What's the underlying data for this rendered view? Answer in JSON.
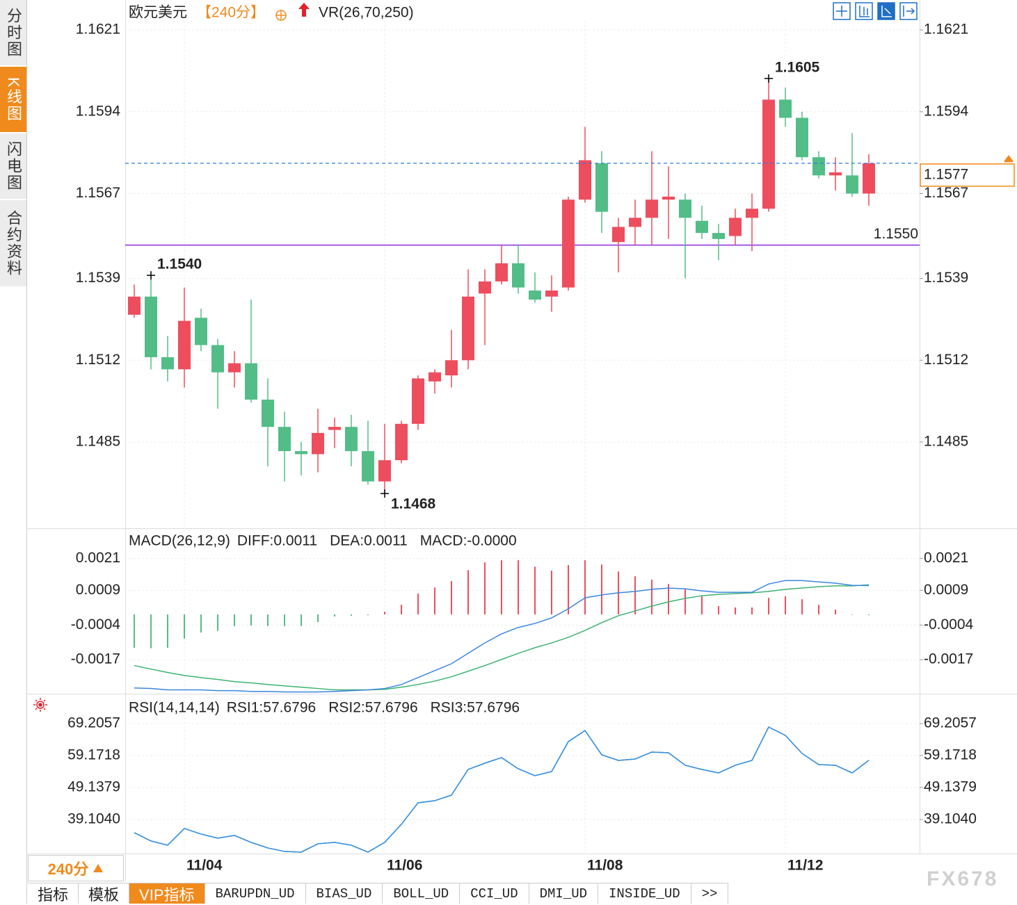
{
  "chart_data": [
    {
      "type": "candlestick",
      "title": "欧元美元",
      "period": "【240分】",
      "indicator": "VR(26,70,250)",
      "categories": [
        null,
        null,
        null,
        "11/04",
        null,
        null,
        null,
        null,
        null,
        null,
        null,
        null,
        null,
        null,
        null,
        "11/06",
        null,
        null,
        null,
        null,
        null,
        null,
        null,
        null,
        null,
        null,
        null,
        "11/08",
        null,
        null,
        null,
        null,
        null,
        null,
        null,
        null,
        null,
        null,
        null,
        "11/12",
        null,
        null,
        null,
        null,
        null
      ],
      "open": [
        1.1527,
        1.1533,
        1.1513,
        1.1509,
        1.1526,
        1.1517,
        1.1508,
        1.1511,
        1.1499,
        1.149,
        1.1482,
        1.1481,
        1.1489,
        1.149,
        1.1482,
        1.1472,
        1.1479,
        1.1491,
        1.1505,
        1.1507,
        1.1512,
        1.1534,
        1.1538,
        1.1544,
        1.1535,
        1.1533,
        1.1536,
        1.1565,
        1.1577,
        1.1551,
        1.1556,
        1.1559,
        1.1565,
        1.1565,
        1.1558,
        1.1554,
        1.1553,
        1.1559,
        1.1562,
        1.1598,
        1.1592,
        1.1579,
        1.1573,
        1.1573,
        1.1567
      ],
      "high": [
        1.1537,
        1.154,
        1.152,
        1.1536,
        1.1529,
        1.1519,
        1.1515,
        1.1532,
        1.1506,
        1.1495,
        1.1485,
        1.1496,
        1.1493,
        1.1494,
        1.1492,
        1.1491,
        1.1492,
        1.1507,
        1.1509,
        1.1522,
        1.1542,
        1.1542,
        1.155,
        1.155,
        1.1541,
        1.154,
        1.1566,
        1.1589,
        1.1581,
        1.1559,
        1.1565,
        1.1581,
        1.1576,
        1.1567,
        1.1563,
        1.1557,
        1.1562,
        1.1567,
        1.1605,
        1.1602,
        1.1594,
        1.1581,
        1.1579,
        1.1587,
        1.158
      ],
      "low": [
        1.1526,
        1.1509,
        1.1505,
        1.1503,
        1.1515,
        1.1496,
        1.1503,
        1.1498,
        1.1477,
        1.1472,
        1.1474,
        1.1475,
        1.1483,
        1.1477,
        1.1471,
        1.1468,
        1.1478,
        1.1489,
        1.1501,
        1.1503,
        1.1509,
        1.1517,
        1.1537,
        1.1534,
        1.1531,
        1.1528,
        1.1535,
        1.1564,
        1.1554,
        1.1541,
        1.155,
        1.155,
        1.1552,
        1.1539,
        1.1552,
        1.1545,
        1.155,
        1.1548,
        1.1561,
        1.1589,
        1.1578,
        1.1572,
        1.1568,
        1.1566,
        1.1563
      ],
      "close": [
        1.1533,
        1.1513,
        1.1509,
        1.1525,
        1.1517,
        1.1508,
        1.1511,
        1.1499,
        1.149,
        1.1482,
        1.1481,
        1.1488,
        1.149,
        1.1482,
        1.1472,
        1.1479,
        1.1491,
        1.1506,
        1.1508,
        1.1512,
        1.1533,
        1.1538,
        1.1544,
        1.1536,
        1.1532,
        1.1535,
        1.1565,
        1.1578,
        1.1561,
        1.1556,
        1.1559,
        1.1565,
        1.1566,
        1.1559,
        1.1554,
        1.1552,
        1.1559,
        1.1562,
        1.1598,
        1.1592,
        1.1579,
        1.1573,
        1.1574,
        1.1567,
        1.1577
      ],
      "up_color": "#ee4d5e",
      "down_color": "#52bd87",
      "ylim": [
        1.1457,
        1.1624
      ],
      "yticks": [
        1.1621,
        1.1594,
        1.1567,
        1.1539,
        1.1512,
        1.1485
      ],
      "grid": true,
      "annotations": [
        {
          "value": 1.1605,
          "label": "1.1605",
          "color": "#ee4d5e"
        },
        {
          "value": 1.154,
          "label": "1.1540",
          "color": "#ee4d5e"
        },
        {
          "value": 1.1468,
          "label": "1.1468",
          "color": "#4fb57f"
        }
      ],
      "level_line": {
        "value": 1.155,
        "label": "1.1550",
        "color": "#8a2be2"
      },
      "last_price": {
        "value": 1.1577,
        "label": "1.1577",
        "color": "#f08a1c",
        "line_color": "#2f7be0"
      }
    },
    {
      "type": "line",
      "label": "MACD(26,12,9)",
      "up_color": "#ee4d5e",
      "down_color": "#52bd87",
      "ylim": [
        -0.003,
        0.0031
      ],
      "yticks": [
        0.0021,
        0.0009,
        -0.0004,
        -0.0017
      ],
      "grid": true,
      "series": [
        {
          "name": "DIFF:0.0011",
          "color": "#3a86e0",
          "values": [
            -0.00276,
            -0.00278,
            -0.00283,
            -0.00283,
            -0.00283,
            -0.00286,
            -0.00286,
            -0.00289,
            -0.00289,
            -0.00291,
            -0.00291,
            -0.00291,
            -0.00289,
            -0.00286,
            -0.00283,
            -0.00278,
            -0.00263,
            -0.00237,
            -0.00211,
            -0.00185,
            -0.00146,
            -0.00107,
            -0.00073,
            -0.00049,
            -0.00034,
            -0.00013,
            0.00021,
            0.00062,
            0.00073,
            0.00081,
            0.00086,
            0.00094,
            0.00099,
            0.00096,
            0.00088,
            0.00083,
            0.00083,
            0.00083,
            0.00114,
            0.00127,
            0.00127,
            0.00122,
            0.00117,
            0.00109,
            0.00108
          ]
        },
        {
          "name": "DEA:0.0011",
          "color": "#3cb371",
          "values": [
            -0.00192,
            -0.00205,
            -0.00218,
            -0.00229,
            -0.00237,
            -0.00244,
            -0.00252,
            -0.00257,
            -0.00263,
            -0.00268,
            -0.00273,
            -0.00278,
            -0.00283,
            -0.00283,
            -0.00283,
            -0.00281,
            -0.00273,
            -0.00263,
            -0.0025,
            -0.00234,
            -0.00213,
            -0.00192,
            -0.00169,
            -0.00146,
            -0.00125,
            -0.00107,
            -0.00086,
            -0.0006,
            -0.00031,
            -5e-05,
            0.00013,
            0.00031,
            0.00047,
            0.0006,
            0.0007,
            0.00075,
            0.00078,
            0.00081,
            0.00086,
            0.00094,
            0.00099,
            0.00104,
            0.00107,
            0.00107,
            0.00111
          ]
        },
        {
          "name": "MACD:-0.0000",
          "color": "#5cb8ec",
          "type": "bar",
          "values": [
            -0.00125,
            -0.00127,
            -0.00125,
            -0.00091,
            -0.00068,
            -0.00062,
            -0.00044,
            -0.00042,
            -0.00044,
            -0.00044,
            -0.00044,
            -0.00029,
            -8e-05,
            -5e-05,
            -3e-05,
            0.0001,
            0.00036,
            0.00078,
            0.00101,
            0.00125,
            0.00166,
            0.00195,
            0.00203,
            0.00203,
            0.00179,
            0.00164,
            0.00185,
            0.00203,
            0.00187,
            0.00161,
            0.00143,
            0.0013,
            0.00114,
            0.00094,
            0.00068,
            0.00031,
            0.00026,
            0.00026,
            0.00062,
            0.00068,
            0.00057,
            0.00036,
            0.00018,
            -2e-05,
            -3e-05
          ]
        }
      ]
    },
    {
      "type": "line",
      "label": "RSI(14,14,14)",
      "ylim": [
        28.4,
        77.06
      ],
      "yticks": [
        69.2057,
        59.1718,
        49.1379,
        {
          "value": 39.104,
          "label": "39.1040"
        }
      ],
      "grid": true,
      "series": [
        {
          "name": "RSI1:57.6796",
          "color": "#3d8ee6",
          "values": [
            34.96,
            32.35,
            31.03,
            36.27,
            34.52,
            33.22,
            34.09,
            31.91,
            30.16,
            29.07,
            28.85,
            31.47,
            31.91,
            31.03,
            28.85,
            31.91,
            37.58,
            44.34,
            45.0,
            46.74,
            54.81,
            56.77,
            58.52,
            55.03,
            52.85,
            54.16,
            63.54,
            67.02,
            59.39,
            57.65,
            58.08,
            60.26,
            60.04,
            56.12,
            54.81,
            53.72,
            56.12,
            57.65,
            68.12,
            65.5,
            59.83,
            56.34,
            56.12,
            53.72,
            57.6796
          ]
        },
        {
          "name": "RSI2:57.6796",
          "color": "#4cc27c",
          "values": [
            34.96,
            32.35,
            31.03,
            36.27,
            34.52,
            33.22,
            34.09,
            31.91,
            30.16,
            29.07,
            28.85,
            31.47,
            31.91,
            31.03,
            28.85,
            31.91,
            37.58,
            44.34,
            45.0,
            46.74,
            54.81,
            56.77,
            58.52,
            55.03,
            52.85,
            54.16,
            63.54,
            67.02,
            59.39,
            57.65,
            58.08,
            60.26,
            60.04,
            56.12,
            54.81,
            53.72,
            56.12,
            57.65,
            68.12,
            65.5,
            59.83,
            56.34,
            56.12,
            53.72,
            57.6796
          ]
        },
        {
          "name": "RSI3:57.6796",
          "color": "#5cb8ec",
          "values": [
            34.96,
            32.35,
            31.03,
            36.27,
            34.52,
            33.22,
            34.09,
            31.91,
            30.16,
            29.07,
            28.85,
            31.47,
            31.91,
            31.03,
            28.85,
            31.91,
            37.58,
            44.34,
            45.0,
            46.74,
            54.81,
            56.77,
            58.52,
            55.03,
            52.85,
            54.16,
            63.54,
            67.02,
            59.39,
            57.65,
            58.08,
            60.26,
            60.04,
            56.12,
            54.81,
            53.72,
            56.12,
            57.65,
            68.12,
            65.5,
            59.83,
            56.34,
            56.12,
            53.72,
            57.6796
          ]
        }
      ]
    }
  ],
  "sidebar": {
    "tabs": [
      "分时图",
      "K线图",
      "闪电图",
      "合约资料"
    ]
  },
  "bottom": {
    "period": "240分",
    "tabs": [
      "指标",
      "模板",
      "VIP指标",
      "BARUPDN_UD",
      "BIAS_UD",
      "BOLL_UD",
      "CCI_UD",
      "DMI_UD",
      "INSIDE_UD"
    ],
    "more": ">>",
    "watermark": "FX678"
  }
}
